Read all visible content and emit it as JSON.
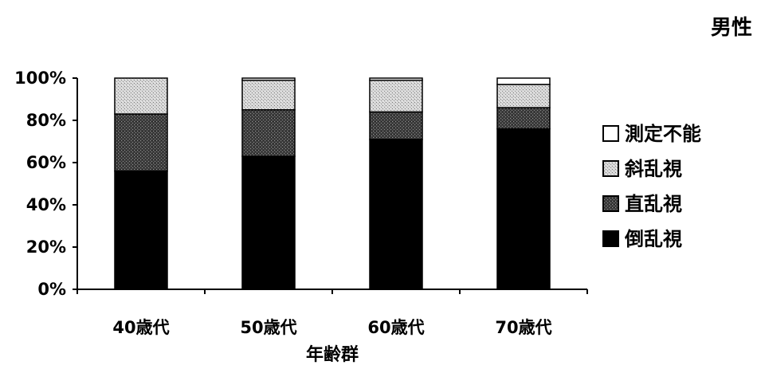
{
  "chart_data": {
    "type": "bar",
    "stacked": true,
    "percent_stacked": true,
    "title": "男性",
    "xlabel": "年齢群",
    "ylabel": "",
    "ylim": [
      0,
      100
    ],
    "y_ticks": [
      "0%",
      "20%",
      "40%",
      "60%",
      "80%",
      "100%"
    ],
    "categories": [
      "40歳代",
      "50歳代",
      "60歳代",
      "70歳代"
    ],
    "series": [
      {
        "name": "倒乱視",
        "values": [
          56,
          63,
          71,
          76
        ],
        "color": "#000000",
        "pattern": "solid"
      },
      {
        "name": "直乱視",
        "values": [
          27,
          22,
          13,
          10
        ],
        "color": "#555555",
        "pattern": "dark-stipple"
      },
      {
        "name": "斜乱視",
        "values": [
          17,
          14,
          15,
          11
        ],
        "color": "#cfcfcf",
        "pattern": "light-stipple"
      },
      {
        "name": "測定不能",
        "values": [
          0,
          1,
          1,
          3
        ],
        "color": "#ffffff",
        "pattern": "none"
      }
    ],
    "legend": {
      "placement": "right",
      "order": [
        "測定不能",
        "斜乱視",
        "直乱視",
        "倒乱視"
      ]
    },
    "grid": false
  }
}
